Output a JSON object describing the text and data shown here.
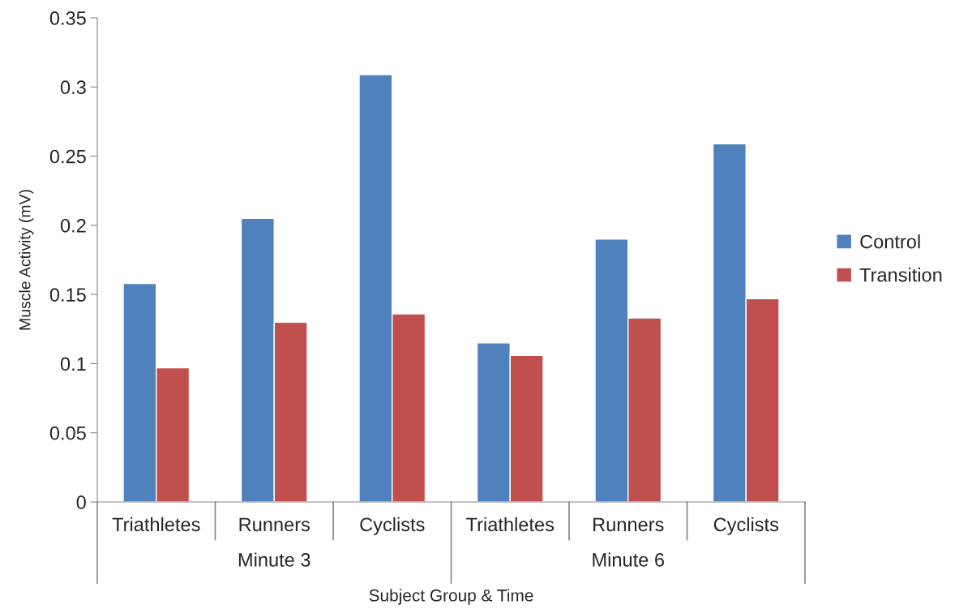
{
  "chart_data": {
    "type": "bar",
    "xlabel": "Subject Group & Time",
    "ylabel": "Muscle Activity (mV)",
    "categories": [
      "Triathletes",
      "Runners",
      "Cyclists",
      "Triathletes",
      "Runners",
      "Cyclists"
    ],
    "series": [
      {
        "name": "Control",
        "color": "#4f81bd",
        "values": [
          0.158,
          0.205,
          0.309,
          0.115,
          0.19,
          0.259
        ]
      },
      {
        "name": "Transition",
        "color": "#c0504d",
        "values": [
          0.097,
          0.13,
          0.136,
          0.106,
          0.133,
          0.147
        ]
      }
    ],
    "annotations": [
      "Minute 3",
      "Minute 6"
    ],
    "ylim": [
      0,
      0.35
    ],
    "yticks": [
      {
        "value": 0,
        "label": "0"
      },
      0.05,
      {
        "value": 0.1,
        "label": "0.1"
      },
      0.15,
      {
        "value": 0.2,
        "label": "0.2"
      },
      0.25,
      {
        "value": 0.3,
        "label": "0.3"
      },
      0.35
    ],
    "grid": false,
    "legend": "right"
  }
}
